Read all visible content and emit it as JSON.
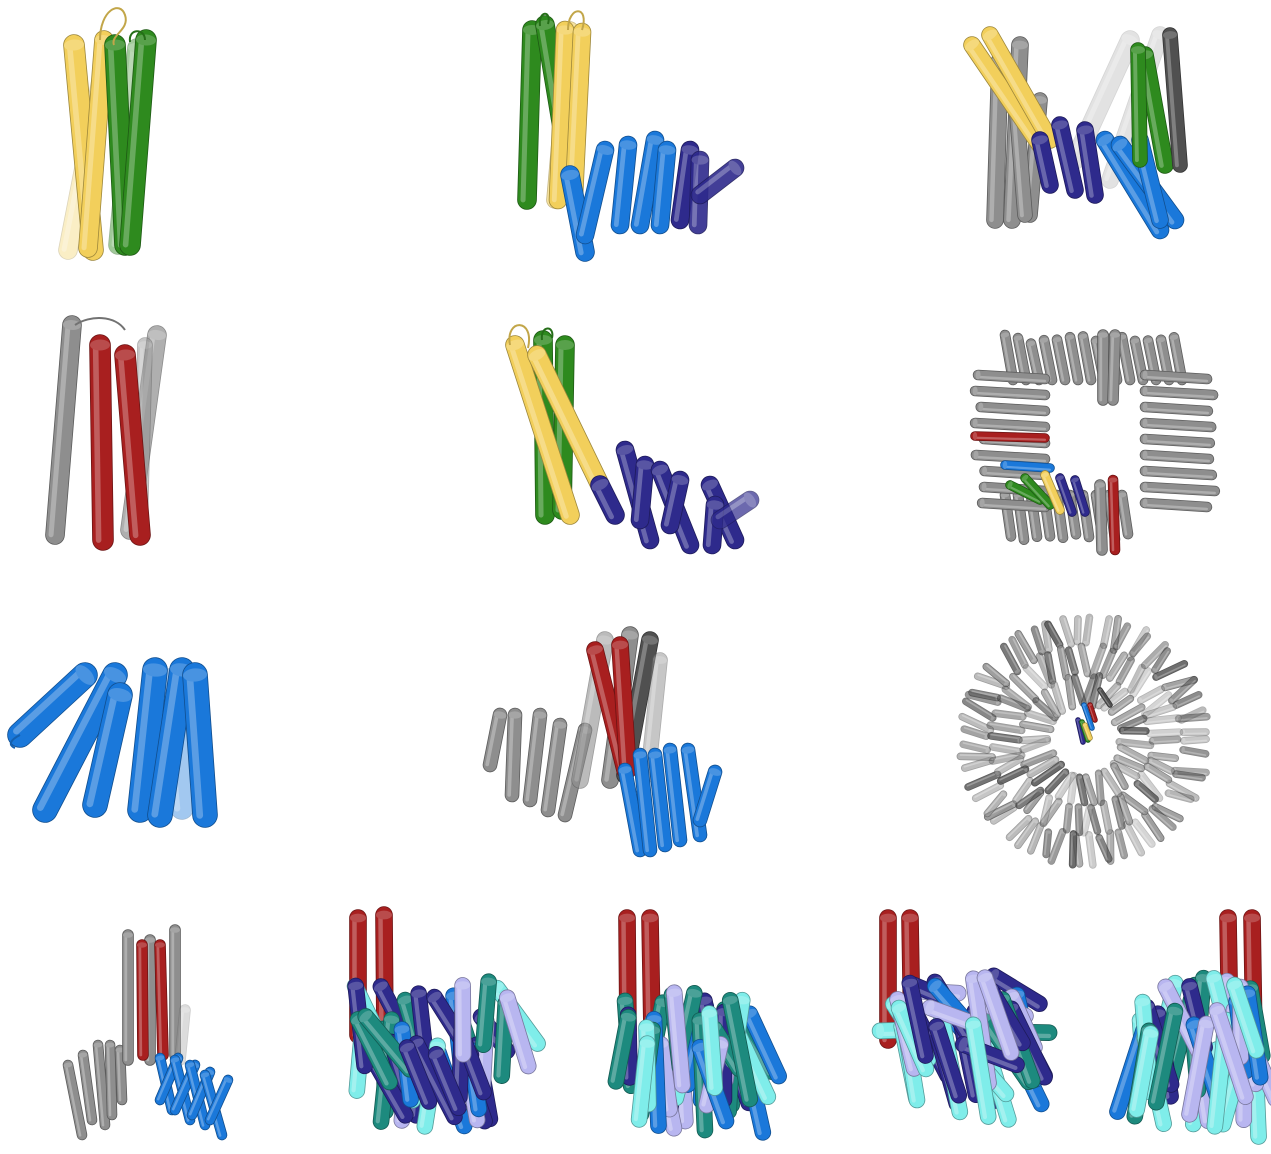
{
  "colors": {
    "yellow": "#F2CF5B",
    "green": "#2E8A1E",
    "blue": "#1A78DA",
    "navy": "#2E2A8C",
    "red": "#A81F1F",
    "gray": "#8E8E8E",
    "dark_gray": "#505050",
    "teal": "#1D8A7E",
    "cyan": "#7FEDEA",
    "lavender": "#B8B6F0"
  },
  "panels": [
    {
      "id": "yellow-green-helical-hairpin-pair",
      "colors": [
        "yellow",
        "green"
      ]
    },
    {
      "id": "green-yellow-hairpin-with-blue-repeats",
      "colors": [
        "green",
        "yellow",
        "blue"
      ]
    },
    {
      "id": "gray-yellow-green-with-navy-blue-repeats",
      "colors": [
        "gray",
        "yellow",
        "navy",
        "blue",
        "green"
      ]
    },
    {
      "id": "gray-red-helical-bundle",
      "colors": [
        "gray",
        "red"
      ]
    },
    {
      "id": "yellow-green-hairpin-with-navy-repeats",
      "colors": [
        "yellow",
        "green",
        "navy"
      ]
    },
    {
      "id": "rectangular-ring-assembly",
      "colors": [
        "gray",
        "red",
        "blue",
        "green",
        "yellow",
        "navy"
      ]
    },
    {
      "id": "blue-helical-repeat-array",
      "colors": [
        "blue"
      ]
    },
    {
      "id": "gray-red-blue-helical-assembly",
      "colors": [
        "gray",
        "red",
        "blue"
      ]
    },
    {
      "id": "circular-ring-assembly",
      "colors": [
        "gray",
        "navy",
        "green",
        "yellow",
        "blue",
        "red"
      ]
    },
    {
      "id": "gray-red-blue-helical-repeat-assembly",
      "colors": [
        "gray",
        "red",
        "blue"
      ]
    },
    {
      "id": "red-helices-with-navy-teal-bundle-1",
      "colors": [
        "red",
        "navy",
        "teal",
        "blue",
        "cyan",
        "lavender"
      ]
    },
    {
      "id": "red-helices-with-teal-lavender-bundle-2",
      "colors": [
        "red",
        "teal",
        "lavender",
        "cyan",
        "navy",
        "blue"
      ]
    },
    {
      "id": "red-helices-with-teal-navy-bundle-3",
      "colors": [
        "red",
        "teal",
        "navy",
        "cyan",
        "blue",
        "lavender"
      ]
    },
    {
      "id": "red-helices-with-cyan-lavender-bundle-4",
      "colors": [
        "red",
        "cyan",
        "lavender",
        "navy",
        "blue",
        "teal"
      ]
    }
  ]
}
